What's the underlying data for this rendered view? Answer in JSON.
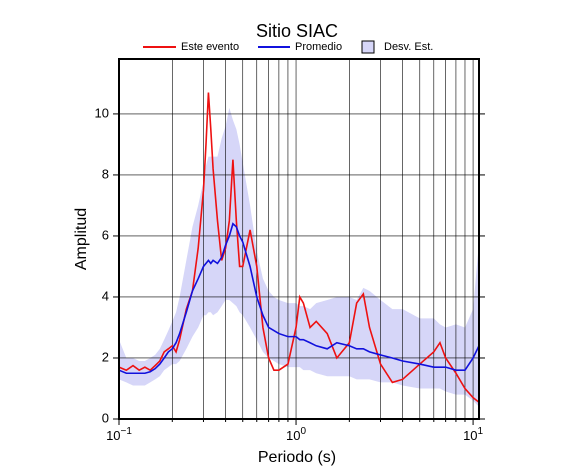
{
  "chart_data": {
    "type": "line",
    "title": "Sitio SIAC",
    "xlabel": "Periodo (s)",
    "ylabel": "Amplitud",
    "xscale": "log",
    "grid": true,
    "xlim": [
      0.1,
      10.8
    ],
    "ylim": [
      0,
      11.8
    ],
    "xticks": [
      {
        "value": 0.1,
        "label": "10",
        "exponent": "−1"
      },
      {
        "value": 1,
        "label": "10",
        "exponent": "0"
      },
      {
        "value": 10,
        "label": "10",
        "exponent": "1"
      }
    ],
    "xgrid": [
      0.2,
      0.3,
      0.4,
      0.5,
      0.6,
      0.7,
      0.8,
      0.9,
      2,
      3,
      4,
      5,
      6,
      7,
      8,
      9
    ],
    "yticks": [
      0,
      2,
      4,
      6,
      8,
      10
    ],
    "x": [
      0.1,
      0.11,
      0.12,
      0.13,
      0.14,
      0.15,
      0.16,
      0.17,
      0.18,
      0.19,
      0.2,
      0.21,
      0.22,
      0.24,
      0.26,
      0.28,
      0.3,
      0.31,
      0.32,
      0.33,
      0.34,
      0.36,
      0.38,
      0.4,
      0.42,
      0.44,
      0.46,
      0.48,
      0.5,
      0.55,
      0.6,
      0.65,
      0.7,
      0.75,
      0.8,
      0.9,
      1.0,
      1.05,
      1.1,
      1.2,
      1.3,
      1.5,
      1.7,
      2.0,
      2.2,
      2.4,
      2.6,
      3.0,
      3.5,
      4.0,
      5.0,
      6.0,
      6.5,
      7.0,
      8.0,
      9.0,
      10.0,
      10.8
    ],
    "band": {
      "name": "Desv. Est.",
      "color": "#d6d6f8",
      "upper": [
        2.6,
        2.0,
        2.0,
        1.9,
        1.9,
        2.0,
        2.1,
        2.3,
        2.6,
        2.9,
        3.2,
        3.5,
        4.0,
        5.2,
        6.3,
        7.0,
        7.8,
        8.3,
        8.6,
        8.6,
        8.6,
        8.6,
        9.2,
        9.6,
        10.2,
        9.8,
        9.5,
        9.0,
        8.4,
        7.0,
        5.5,
        4.6,
        4.2,
        4.0,
        3.9,
        3.8,
        3.8,
        3.7,
        3.7,
        3.6,
        3.8,
        3.9,
        4.0,
        4.0,
        3.9,
        4.3,
        4.2,
        3.9,
        3.6,
        3.6,
        3.3,
        3.3,
        3.1,
        3.0,
        3.1,
        3.0,
        3.6,
        5.8
      ],
      "lower": [
        1.3,
        1.2,
        1.1,
        1.1,
        1.1,
        1.2,
        1.3,
        1.4,
        1.6,
        1.7,
        1.8,
        1.8,
        1.9,
        2.3,
        2.7,
        3.0,
        3.4,
        3.4,
        3.5,
        3.5,
        3.4,
        3.5,
        3.7,
        3.9,
        3.9,
        3.8,
        3.7,
        3.5,
        3.4,
        3.0,
        2.6,
        2.2,
        2.0,
        1.9,
        1.8,
        1.7,
        1.7,
        1.7,
        1.6,
        1.6,
        1.5,
        1.4,
        1.4,
        1.4,
        1.3,
        1.3,
        1.3,
        1.2,
        1.2,
        1.1,
        1.0,
        1.0,
        1.0,
        0.9,
        0.8,
        0.8,
        0.6,
        0.4
      ]
    },
    "series": [
      {
        "name": "Este evento",
        "color": "#ee1111",
        "values": [
          1.7,
          1.6,
          1.75,
          1.6,
          1.7,
          1.6,
          1.75,
          1.9,
          2.2,
          2.3,
          2.4,
          2.2,
          2.6,
          3.6,
          4.2,
          5.6,
          7.5,
          9.0,
          10.7,
          9.5,
          8.2,
          6.5,
          5.2,
          5.6,
          6.5,
          8.5,
          6.5,
          5.0,
          5.0,
          6.2,
          5.0,
          3.0,
          2.0,
          1.6,
          1.6,
          1.8,
          3.0,
          4.0,
          3.8,
          3.0,
          3.2,
          2.8,
          2.0,
          2.5,
          3.8,
          4.1,
          3.0,
          1.8,
          1.2,
          1.3,
          1.8,
          2.2,
          2.5,
          2.0,
          1.5,
          1.0,
          0.7,
          0.55
        ]
      },
      {
        "name": "Promedio",
        "color": "#1111dd",
        "values": [
          1.6,
          1.5,
          1.5,
          1.5,
          1.5,
          1.55,
          1.65,
          1.8,
          2.0,
          2.2,
          2.3,
          2.5,
          2.8,
          3.5,
          4.2,
          4.6,
          5.0,
          5.1,
          5.2,
          5.1,
          5.2,
          5.1,
          5.3,
          5.7,
          6.0,
          6.4,
          6.3,
          6.0,
          5.8,
          5.0,
          4.0,
          3.4,
          3.0,
          2.9,
          2.8,
          2.7,
          2.7,
          2.6,
          2.6,
          2.5,
          2.4,
          2.3,
          2.5,
          2.4,
          2.3,
          2.3,
          2.2,
          2.1,
          2.0,
          1.9,
          1.8,
          1.7,
          1.7,
          1.7,
          1.6,
          1.6,
          2.0,
          2.4
        ]
      }
    ]
  }
}
